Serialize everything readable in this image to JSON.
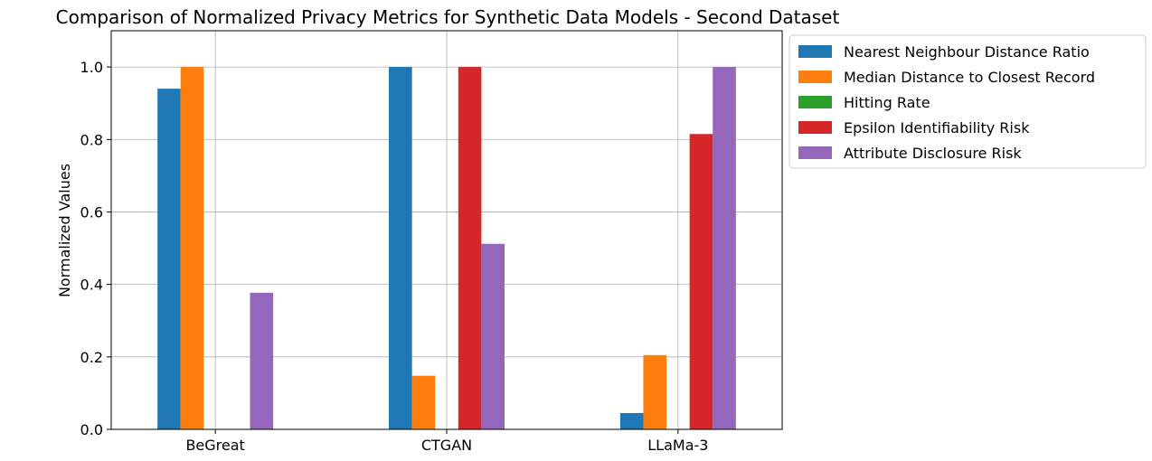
{
  "chart_data": {
    "type": "bar",
    "title": "Comparison of Normalized Privacy Metrics for Synthetic Data Models - Second Dataset",
    "xlabel": "",
    "ylabel": "Normalized Values",
    "ylim": [
      0,
      1.1
    ],
    "yticks": [
      "0.0",
      "0.2",
      "0.4",
      "0.6",
      "0.8",
      "1.0"
    ],
    "grid": true,
    "legend_position": "outside-top-right",
    "categories": [
      "BeGreat",
      "CTGAN",
      "LLaMa-3"
    ],
    "series": [
      {
        "name": "Nearest Neighbour Distance Ratio",
        "color": "#1f77b4",
        "values": [
          0.94,
          1.0,
          0.045
        ]
      },
      {
        "name": "Median Distance to Closest Record",
        "color": "#ff7f0e",
        "values": [
          1.0,
          0.148,
          0.205
        ]
      },
      {
        "name": "Hitting Rate",
        "color": "#2ca02c",
        "values": [
          0.0,
          0.0,
          0.0
        ]
      },
      {
        "name": "Epsilon Identifiability Risk",
        "color": "#d62728",
        "values": [
          0.0,
          1.0,
          0.815
        ]
      },
      {
        "name": "Attribute Disclosure Risk",
        "color": "#9467bd",
        "values": [
          0.377,
          0.512,
          1.0
        ]
      }
    ]
  }
}
